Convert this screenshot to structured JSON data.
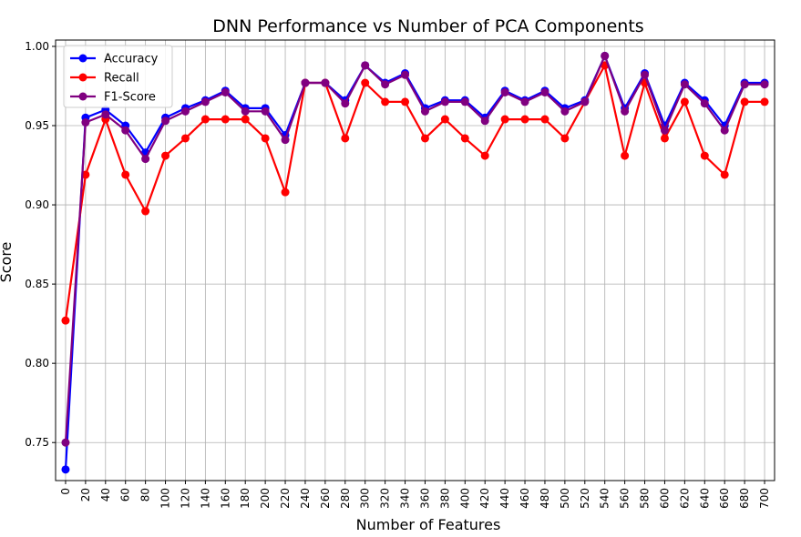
{
  "chart_data": {
    "type": "line",
    "title": "DNN Performance vs Number of PCA Components",
    "xlabel": "Number of Features",
    "ylabel": "Score",
    "x": [
      0,
      20,
      40,
      60,
      80,
      100,
      120,
      140,
      160,
      180,
      200,
      220,
      240,
      260,
      280,
      300,
      320,
      340,
      360,
      380,
      400,
      420,
      440,
      460,
      480,
      500,
      520,
      540,
      560,
      580,
      600,
      620,
      640,
      660,
      680,
      700
    ],
    "xticks": [
      "0",
      "20",
      "40",
      "60",
      "80",
      "100",
      "120",
      "140",
      "160",
      "180",
      "200",
      "220",
      "240",
      "260",
      "280",
      "300",
      "320",
      "340",
      "360",
      "380",
      "400",
      "420",
      "440",
      "460",
      "480",
      "500",
      "520",
      "540",
      "560",
      "580",
      "600",
      "620",
      "640",
      "660",
      "680",
      "700"
    ],
    "yticks": [
      "0.75",
      "0.80",
      "0.85",
      "0.90",
      "0.95",
      "1.00"
    ],
    "ytick_values": [
      0.75,
      0.8,
      0.85,
      0.9,
      0.95,
      1.0
    ],
    "xlim": [
      -10,
      710
    ],
    "ylim": [
      0.726,
      1.004
    ],
    "grid": true,
    "legend_position": "top-left",
    "series": [
      {
        "name": "Accuracy",
        "color": "#0000ff",
        "values": [
          0.733,
          0.955,
          0.96,
          0.95,
          0.933,
          0.955,
          0.961,
          0.966,
          0.972,
          0.961,
          0.961,
          0.944,
          0.977,
          0.977,
          0.966,
          0.988,
          0.977,
          0.983,
          0.961,
          0.966,
          0.966,
          0.955,
          0.972,
          0.966,
          0.972,
          0.961,
          0.966,
          0.994,
          0.961,
          0.983,
          0.95,
          0.977,
          0.966,
          0.95,
          0.977,
          0.977
        ]
      },
      {
        "name": "Recall",
        "color": "#ff0000",
        "values": [
          0.827,
          0.919,
          0.954,
          0.919,
          0.896,
          0.931,
          0.942,
          0.954,
          0.954,
          0.954,
          0.942,
          0.908,
          0.977,
          0.977,
          0.942,
          0.977,
          0.965,
          0.965,
          0.942,
          0.954,
          0.942,
          0.931,
          0.954,
          0.954,
          0.954,
          0.942,
          0.965,
          0.988,
          0.931,
          0.977,
          0.942,
          0.965,
          0.931,
          0.919,
          0.965,
          0.965
        ]
      },
      {
        "name": "F1-Score",
        "color": "#800080",
        "values": [
          0.75,
          0.952,
          0.957,
          0.947,
          0.929,
          0.953,
          0.959,
          0.965,
          0.971,
          0.959,
          0.959,
          0.941,
          0.977,
          0.977,
          0.964,
          0.988,
          0.976,
          0.982,
          0.959,
          0.965,
          0.965,
          0.953,
          0.971,
          0.965,
          0.971,
          0.959,
          0.965,
          0.994,
          0.959,
          0.982,
          0.947,
          0.976,
          0.964,
          0.947,
          0.976,
          0.976
        ]
      }
    ]
  }
}
